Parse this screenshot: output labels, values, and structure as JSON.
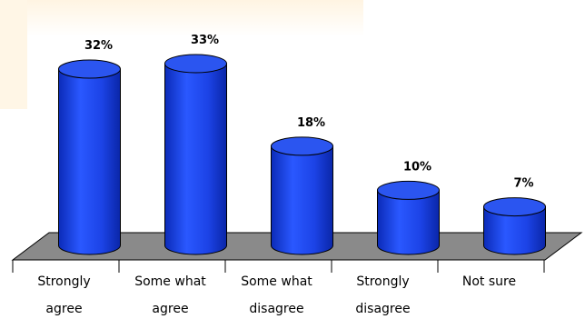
{
  "chart_data": {
    "type": "bar",
    "style": "3d-cylinder",
    "categories": [
      [
        "Strongly",
        "agree"
      ],
      [
        "Some what",
        "agree"
      ],
      [
        "Some what",
        "disagree"
      ],
      [
        "Strongly",
        "disagree"
      ],
      [
        "Not sure"
      ]
    ],
    "values": [
      32,
      33,
      18,
      10,
      7
    ],
    "data_labels": [
      "32%",
      "33%",
      "18%",
      "10%",
      "7%"
    ],
    "ylim": [
      0,
      35
    ],
    "grid": false,
    "legend": "none",
    "colors": {
      "bar_side": "#1a3fe0",
      "bar_top": "#2b55f0",
      "floor": "#8a8a8a",
      "background_top": "#fff6e6"
    }
  }
}
